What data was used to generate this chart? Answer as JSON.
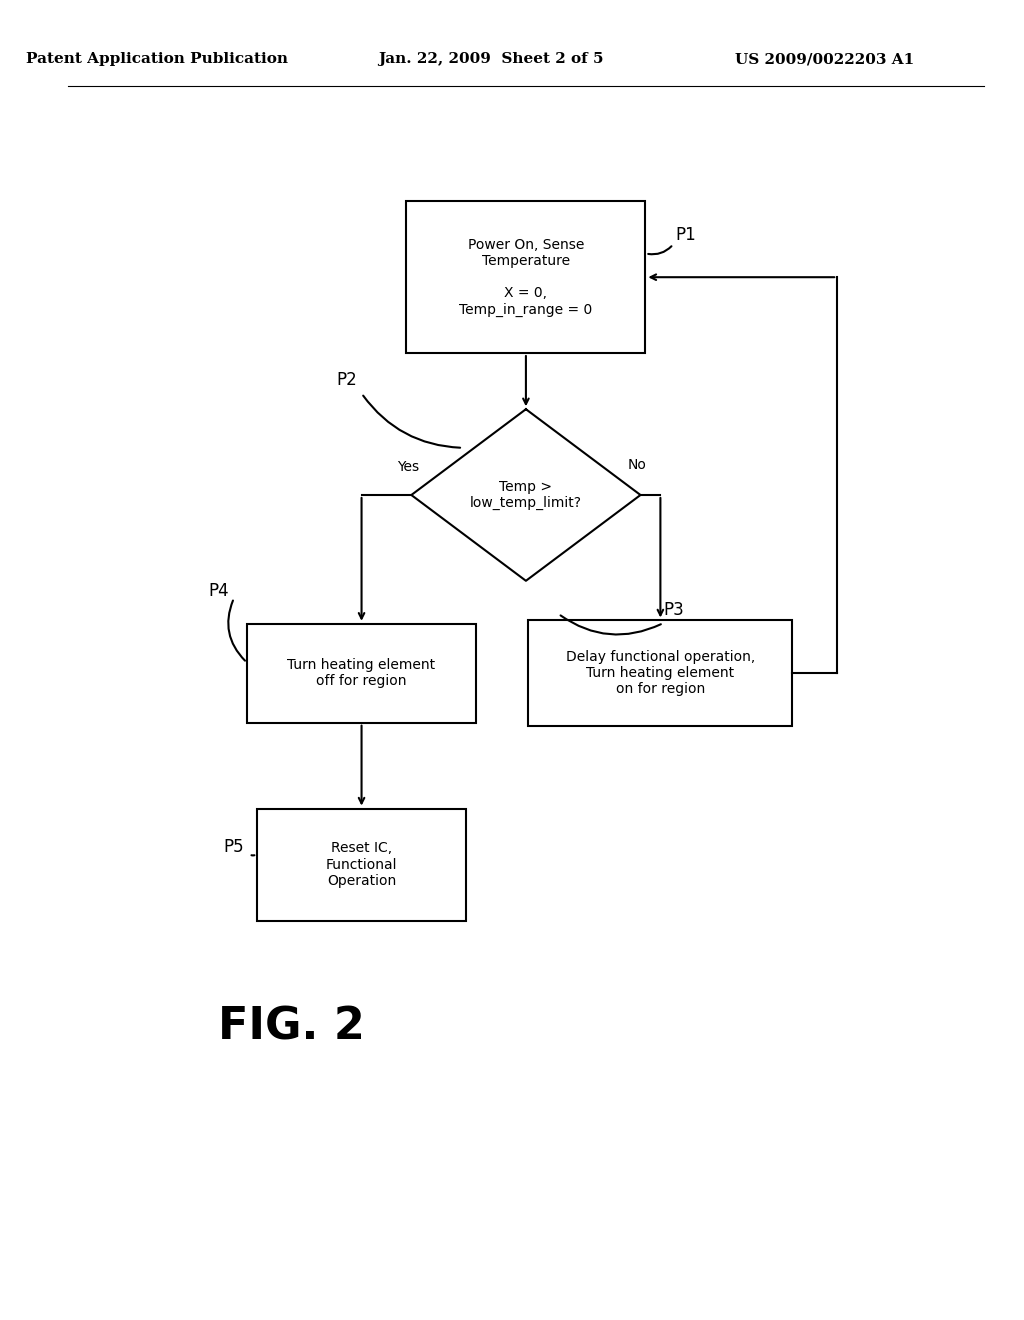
{
  "background_color": "#ffffff",
  "header_left": "Patent Application Publication",
  "header_center": "Jan. 22, 2009  Sheet 2 of 5",
  "header_right": "US 2009/0022203 A1",
  "header_fontsize": 11,
  "fig_label": "FIG. 2",
  "fig_label_fontsize": 32,
  "line_color": "#000000",
  "box_edge_color": "#000000",
  "text_color": "#000000"
}
